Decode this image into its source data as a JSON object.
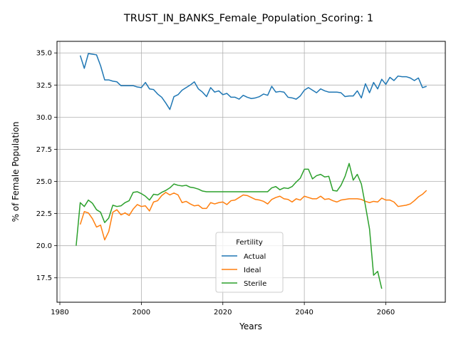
{
  "chart_data": {
    "type": "line",
    "title": "TRUST_IN_BANKS_Female_Population_Scoring: 1",
    "xlabel": "Years",
    "ylabel": "% of Female Population",
    "xlim": [
      1979.3,
      2074.6
    ],
    "ylim": [
      15.6,
      35.9
    ],
    "xticks": [
      1980,
      2000,
      2020,
      2040,
      2060
    ],
    "yticks": [
      17.5,
      20.0,
      22.5,
      25.0,
      27.5,
      30.0,
      32.5,
      35.0
    ],
    "ytick_labels": [
      "17.5",
      "20.0",
      "22.5",
      "25.0",
      "27.5",
      "30.0",
      "32.5",
      "35.0"
    ],
    "grid": true,
    "legend": {
      "title": "Fertility",
      "position": "bottom-center"
    },
    "series": [
      {
        "name": "Actual",
        "color": "#1f77b4",
        "points": [
          [
            1985,
            34.8
          ],
          [
            1986,
            33.8
          ],
          [
            1987,
            34.95
          ],
          [
            1988,
            34.9
          ],
          [
            1989,
            34.85
          ],
          [
            1990,
            34.0
          ],
          [
            1991,
            32.9
          ],
          [
            1992,
            32.9
          ],
          [
            1993,
            32.8
          ],
          [
            1994,
            32.75
          ],
          [
            1995,
            32.45
          ],
          [
            1996,
            32.45
          ],
          [
            1997,
            32.45
          ],
          [
            1998,
            32.45
          ],
          [
            1999,
            32.35
          ],
          [
            2000,
            32.3
          ],
          [
            2001,
            32.7
          ],
          [
            2002,
            32.2
          ],
          [
            2003,
            32.15
          ],
          [
            2004,
            31.8
          ],
          [
            2005,
            31.55
          ],
          [
            2006,
            31.1
          ],
          [
            2007,
            30.6
          ],
          [
            2008,
            31.6
          ],
          [
            2009,
            31.75
          ],
          [
            2010,
            32.1
          ],
          [
            2011,
            32.3
          ],
          [
            2012,
            32.5
          ],
          [
            2013,
            32.75
          ],
          [
            2014,
            32.2
          ],
          [
            2015,
            31.95
          ],
          [
            2016,
            31.6
          ],
          [
            2017,
            32.3
          ],
          [
            2018,
            31.95
          ],
          [
            2019,
            32.05
          ],
          [
            2020,
            31.75
          ],
          [
            2021,
            31.85
          ],
          [
            2022,
            31.55
          ],
          [
            2023,
            31.55
          ],
          [
            2024,
            31.4
          ],
          [
            2025,
            31.7
          ],
          [
            2026,
            31.55
          ],
          [
            2027,
            31.45
          ],
          [
            2028,
            31.5
          ],
          [
            2029,
            31.6
          ],
          [
            2030,
            31.8
          ],
          [
            2031,
            31.7
          ],
          [
            2032,
            32.4
          ],
          [
            2033,
            31.95
          ],
          [
            2034,
            32.0
          ],
          [
            2035,
            31.95
          ],
          [
            2036,
            31.55
          ],
          [
            2037,
            31.5
          ],
          [
            2038,
            31.4
          ],
          [
            2039,
            31.65
          ],
          [
            2040,
            32.1
          ],
          [
            2041,
            32.3
          ],
          [
            2042,
            32.1
          ],
          [
            2043,
            31.9
          ],
          [
            2044,
            32.2
          ],
          [
            2045,
            32.05
          ],
          [
            2046,
            31.95
          ],
          [
            2047,
            31.95
          ],
          [
            2048,
            31.95
          ],
          [
            2049,
            31.9
          ],
          [
            2050,
            31.6
          ],
          [
            2051,
            31.65
          ],
          [
            2052,
            31.65
          ],
          [
            2053,
            32.05
          ],
          [
            2054,
            31.5
          ],
          [
            2055,
            32.6
          ],
          [
            2056,
            31.9
          ],
          [
            2057,
            32.7
          ],
          [
            2058,
            32.2
          ],
          [
            2059,
            32.95
          ],
          [
            2060,
            32.55
          ],
          [
            2061,
            33.1
          ],
          [
            2062,
            32.85
          ],
          [
            2063,
            33.2
          ],
          [
            2064,
            33.15
          ],
          [
            2065,
            33.15
          ],
          [
            2066,
            33.05
          ],
          [
            2067,
            32.85
          ],
          [
            2068,
            33.05
          ],
          [
            2069,
            32.3
          ],
          [
            2070,
            32.4
          ]
        ]
      },
      {
        "name": "Ideal",
        "color": "#ff7f0e",
        "points": [
          [
            1985,
            21.65
          ],
          [
            1986,
            22.65
          ],
          [
            1987,
            22.55
          ],
          [
            1988,
            22.1
          ],
          [
            1989,
            21.45
          ],
          [
            1990,
            21.6
          ],
          [
            1991,
            20.45
          ],
          [
            1992,
            21.1
          ],
          [
            1993,
            22.6
          ],
          [
            1994,
            22.8
          ],
          [
            1995,
            22.4
          ],
          [
            1996,
            22.55
          ],
          [
            1997,
            22.35
          ],
          [
            1998,
            22.85
          ],
          [
            1999,
            23.2
          ],
          [
            2000,
            23.05
          ],
          [
            2001,
            23.1
          ],
          [
            2002,
            22.7
          ],
          [
            2003,
            23.4
          ],
          [
            2004,
            23.5
          ],
          [
            2005,
            23.9
          ],
          [
            2006,
            24.15
          ],
          [
            2007,
            23.95
          ],
          [
            2008,
            24.1
          ],
          [
            2009,
            23.95
          ],
          [
            2010,
            23.35
          ],
          [
            2011,
            23.45
          ],
          [
            2012,
            23.25
          ],
          [
            2013,
            23.1
          ],
          [
            2014,
            23.15
          ],
          [
            2015,
            22.9
          ],
          [
            2016,
            22.9
          ],
          [
            2017,
            23.35
          ],
          [
            2018,
            23.25
          ],
          [
            2019,
            23.35
          ],
          [
            2020,
            23.4
          ],
          [
            2021,
            23.2
          ],
          [
            2022,
            23.5
          ],
          [
            2023,
            23.55
          ],
          [
            2024,
            23.75
          ],
          [
            2025,
            23.95
          ],
          [
            2026,
            23.9
          ],
          [
            2027,
            23.75
          ],
          [
            2028,
            23.6
          ],
          [
            2029,
            23.55
          ],
          [
            2030,
            23.45
          ],
          [
            2031,
            23.25
          ],
          [
            2032,
            23.6
          ],
          [
            2033,
            23.75
          ],
          [
            2034,
            23.85
          ],
          [
            2035,
            23.65
          ],
          [
            2036,
            23.6
          ],
          [
            2037,
            23.4
          ],
          [
            2038,
            23.65
          ],
          [
            2039,
            23.55
          ],
          [
            2040,
            23.85
          ],
          [
            2041,
            23.75
          ],
          [
            2042,
            23.65
          ],
          [
            2043,
            23.65
          ],
          [
            2044,
            23.85
          ],
          [
            2045,
            23.6
          ],
          [
            2046,
            23.65
          ],
          [
            2047,
            23.5
          ],
          [
            2048,
            23.4
          ],
          [
            2049,
            23.55
          ],
          [
            2050,
            23.6
          ],
          [
            2051,
            23.65
          ],
          [
            2052,
            23.65
          ],
          [
            2053,
            23.65
          ],
          [
            2054,
            23.6
          ],
          [
            2055,
            23.45
          ],
          [
            2056,
            23.35
          ],
          [
            2057,
            23.45
          ],
          [
            2058,
            23.4
          ],
          [
            2059,
            23.7
          ],
          [
            2060,
            23.55
          ],
          [
            2061,
            23.55
          ],
          [
            2062,
            23.4
          ],
          [
            2063,
            23.05
          ],
          [
            2064,
            23.1
          ],
          [
            2065,
            23.15
          ],
          [
            2066,
            23.25
          ],
          [
            2067,
            23.5
          ],
          [
            2068,
            23.8
          ],
          [
            2069,
            24.0
          ],
          [
            2070,
            24.3
          ]
        ]
      },
      {
        "name": "Sterile",
        "color": "#2ca02c",
        "points": [
          [
            1984,
            20.0
          ],
          [
            1985,
            23.35
          ],
          [
            1986,
            23.05
          ],
          [
            1987,
            23.55
          ],
          [
            1988,
            23.3
          ],
          [
            1989,
            22.8
          ],
          [
            1990,
            22.6
          ],
          [
            1991,
            21.8
          ],
          [
            1992,
            22.15
          ],
          [
            1993,
            23.15
          ],
          [
            1994,
            23.05
          ],
          [
            1995,
            23.1
          ],
          [
            1996,
            23.35
          ],
          [
            1997,
            23.5
          ],
          [
            1998,
            24.15
          ],
          [
            1999,
            24.2
          ],
          [
            2000,
            24.05
          ],
          [
            2001,
            23.85
          ],
          [
            2002,
            23.55
          ],
          [
            2003,
            24.0
          ],
          [
            2004,
            23.95
          ],
          [
            2005,
            24.15
          ],
          [
            2006,
            24.3
          ],
          [
            2007,
            24.5
          ],
          [
            2008,
            24.8
          ],
          [
            2009,
            24.7
          ],
          [
            2010,
            24.65
          ],
          [
            2011,
            24.7
          ],
          [
            2012,
            24.55
          ],
          [
            2013,
            24.5
          ],
          [
            2014,
            24.4
          ],
          [
            2015,
            24.25
          ],
          [
            2016,
            24.2
          ],
          [
            2017,
            24.2
          ],
          [
            2018,
            24.2
          ],
          [
            2019,
            24.2
          ],
          [
            2020,
            24.2
          ],
          [
            2021,
            24.2
          ],
          [
            2022,
            24.2
          ],
          [
            2023,
            24.2
          ],
          [
            2024,
            24.2
          ],
          [
            2025,
            24.2
          ],
          [
            2026,
            24.2
          ],
          [
            2027,
            24.2
          ],
          [
            2028,
            24.2
          ],
          [
            2029,
            24.2
          ],
          [
            2030,
            24.2
          ],
          [
            2031,
            24.2
          ],
          [
            2032,
            24.5
          ],
          [
            2033,
            24.6
          ],
          [
            2034,
            24.35
          ],
          [
            2035,
            24.5
          ],
          [
            2036,
            24.45
          ],
          [
            2037,
            24.6
          ],
          [
            2038,
            24.95
          ],
          [
            2039,
            25.25
          ],
          [
            2040,
            25.95
          ],
          [
            2041,
            25.95
          ],
          [
            2042,
            25.2
          ],
          [
            2043,
            25.45
          ],
          [
            2044,
            25.55
          ],
          [
            2045,
            25.35
          ],
          [
            2046,
            25.4
          ],
          [
            2047,
            24.3
          ],
          [
            2048,
            24.25
          ],
          [
            2049,
            24.7
          ],
          [
            2050,
            25.4
          ],
          [
            2051,
            26.4
          ],
          [
            2052,
            25.1
          ],
          [
            2053,
            25.55
          ],
          [
            2054,
            24.8
          ],
          [
            2055,
            23.1
          ],
          [
            2056,
            21.3
          ],
          [
            2057,
            17.7
          ],
          [
            2058,
            18.0
          ],
          [
            2059,
            16.65
          ]
        ]
      }
    ]
  }
}
